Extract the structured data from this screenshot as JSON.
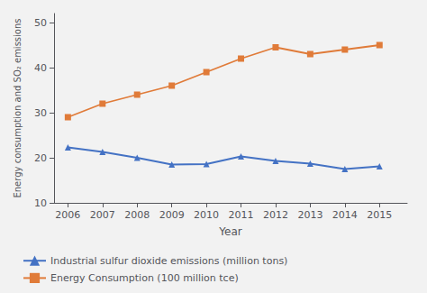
{
  "chart_data": {
    "type": "line",
    "x": [
      2006,
      2007,
      2008,
      2009,
      2010,
      2011,
      2012,
      2013,
      2014,
      2015
    ],
    "series": [
      {
        "name": "Industrial sulfur dioxide emissions (million tons)",
        "color": "#4472c4",
        "marker": "triangle",
        "values": [
          22.3,
          21.3,
          20.0,
          18.5,
          18.6,
          20.3,
          19.3,
          18.7,
          17.5,
          18.1
        ]
      },
      {
        "name": "Energy Consumption (100 million tce)",
        "color": "#e07b39",
        "marker": "square",
        "values": [
          29.0,
          32.0,
          34.0,
          36.0,
          39.0,
          42.0,
          44.5,
          43.0,
          44.0,
          45.0
        ]
      }
    ],
    "x_label": "Year",
    "y_label": "Energy consumption and SO₂ emissions",
    "xlim": [
      2005.6,
      2015.8
    ],
    "xticks": [
      2006,
      2007,
      2008,
      2009,
      2010,
      2011,
      2012,
      2013,
      2014,
      2015
    ],
    "ylim": [
      10,
      52
    ],
    "yticks": [
      10,
      20,
      30,
      40,
      50
    ],
    "grid": false,
    "legend": "bottom left"
  }
}
